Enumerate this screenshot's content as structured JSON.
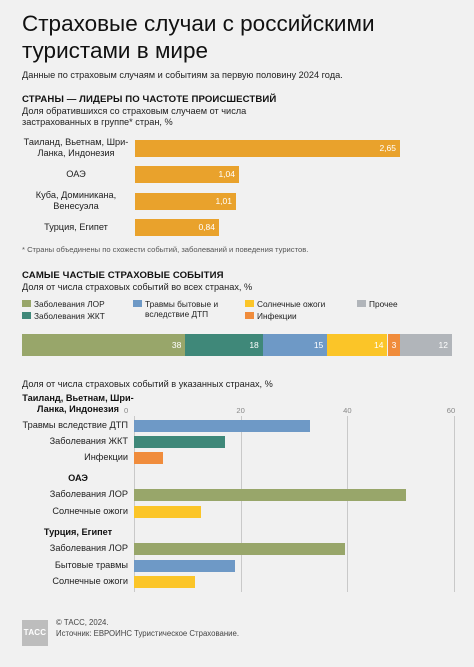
{
  "title": "Страховые случаи с российскими туристами в мире",
  "subtitle": "Данные по страховым случаям и событиям за первую половину 2024 года.",
  "colors": {
    "orange": "#e9a22c",
    "olive": "#98a66a",
    "teal": "#3f8879",
    "blue": "#6e99c6",
    "yellow": "#fbc528",
    "infection": "#f08c3c",
    "other": "#b1b5ba"
  },
  "section1": {
    "heading": "СТРАНЫ — ЛИДЕРЫ ПО ЧАСТОТЕ ПРОИСШЕСТВИЙ",
    "subheading": "Доля обратившихся со страховым случаем от числа застрахованных в группе* стран, %",
    "note": "* Страны объединены по схожести событий, заболеваний и поведения туристов."
  },
  "section2": {
    "heading": "САМЫЕ ЧАСТЫЕ СТРАХОВЫЕ СОБЫТИЯ",
    "subheading": "Доля от числа страховых событий во всех странах, %",
    "legend": [
      {
        "label": "Заболевания ЛОР",
        "color": "#98a66a"
      },
      {
        "label": "Травмы бытовые и вследствие ДТП",
        "color": "#6e99c6"
      },
      {
        "label": "Солнечные ожоги",
        "color": "#fbc528"
      },
      {
        "label": "Прочее",
        "color": "#b1b5ba"
      },
      {
        "label": "Заболевания ЖКТ",
        "color": "#3f8879"
      },
      {
        "label": "Инфекции",
        "color": "#f08c3c"
      }
    ]
  },
  "section3": {
    "subheading": "Доля от числа страховых событий в указанных странах, %"
  },
  "footer": {
    "copyright": "© ТАСС, 2024.",
    "source": "Источник: ЕВРОИНС Туристическое Страхование.",
    "logo_text": "ТАСС"
  },
  "chart_data": [
    {
      "type": "bar",
      "orientation": "horizontal",
      "categories": [
        "Таиланд, Вьетнам, Шри-Ланка, Индонезия",
        "ОАЭ",
        "Куба, Доминикана, Венесуэла",
        "Турция, Египет"
      ],
      "values": [
        2.65,
        1.04,
        1.01,
        0.84
      ],
      "value_labels": [
        "2,65",
        "1,04",
        "1,01",
        "0,84"
      ],
      "xlim": [
        0,
        3.0
      ],
      "grid": false
    },
    {
      "type": "bar",
      "orientation": "stacked-100",
      "series": [
        {
          "name": "Заболевания ЛОР",
          "value": 38,
          "label": "38"
        },
        {
          "name": "Заболевания ЖКТ",
          "value": 18,
          "label": "18"
        },
        {
          "name": "Травмы бытовые и вследствие ДТП",
          "value": 15,
          "label": "15"
        },
        {
          "name": "Солнечные ожоги",
          "value": 14,
          "label": "14"
        },
        {
          "name": "Инфекции",
          "value": 3,
          "label": "3"
        },
        {
          "name": "Прочее",
          "value": 12,
          "label": "12"
        }
      ],
      "legend": "top"
    },
    {
      "type": "bar",
      "orientation": "horizontal-grouped",
      "xlim": [
        0,
        60
      ],
      "ticks": [
        "0",
        "20",
        "40",
        "60"
      ],
      "grid": true,
      "groups": [
        {
          "title": "Таиланд, Вьетнам, Шри-Ланка, Индонезия",
          "bars": [
            {
              "label": "Травмы вследствие ДТП",
              "value": 33,
              "color": "#6e99c6"
            },
            {
              "label": "Заболевания ЖКТ",
              "value": 17,
              "color": "#3f8879"
            },
            {
              "label": "Инфекции",
              "value": 5.5,
              "color": "#f08c3c"
            }
          ]
        },
        {
          "title": "ОАЭ",
          "bars": [
            {
              "label": "Заболевания ЛОР",
              "value": 51,
              "color": "#98a66a"
            },
            {
              "label": "Солнечные ожоги",
              "value": 12.5,
              "color": "#fbc528"
            }
          ]
        },
        {
          "title": "Турция, Египет",
          "bars": [
            {
              "label": "Заболевания ЛОР",
              "value": 39.5,
              "color": "#98a66a"
            },
            {
              "label": "Бытовые травмы",
              "value": 19,
              "color": "#6e99c6"
            },
            {
              "label": "Солнечные ожоги",
              "value": 11.5,
              "color": "#fbc528"
            }
          ]
        }
      ]
    }
  ]
}
